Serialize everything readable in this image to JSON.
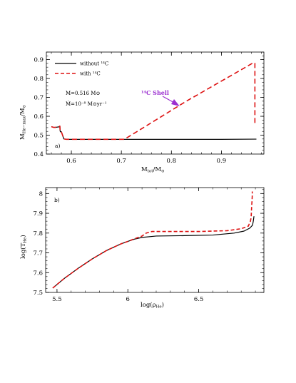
{
  "chart_data": [
    {
      "type": "line",
      "panel_label": "a)",
      "xlabel": "M_tot/M_⊙",
      "ylabel": "M_He-max/M_⊙",
      "xlim": [
        0.55,
        0.985
      ],
      "ylim": [
        0.4,
        0.94
      ],
      "xticks": [
        {
          "value": 0.6,
          "label": "0.6"
        },
        {
          "value": 0.7,
          "label": "0.7"
        },
        {
          "value": 0.8,
          "label": "0.8"
        },
        {
          "value": 0.9,
          "label": "0.9"
        }
      ],
      "yticks": [
        {
          "value": 0.4,
          "label": "0.4"
        },
        {
          "value": 0.5,
          "label": "0.5"
        },
        {
          "value": 0.6,
          "label": "0.6"
        },
        {
          "value": 0.7,
          "label": "0.7"
        },
        {
          "value": 0.8,
          "label": "0.8"
        },
        {
          "value": 0.9,
          "label": "0.9"
        }
      ],
      "legend": [
        {
          "label": "without ¹⁴C",
          "style": "solid",
          "color": "#000000"
        },
        {
          "label": "with ¹⁴C",
          "style": "dashed",
          "color": "#dd1111"
        }
      ],
      "annotations": {
        "mass": "M=0.516 M⊙",
        "rate": "Ṁ=10⁻⁸ M⊙yr⁻¹",
        "shell_label": "¹⁴C Shell"
      },
      "series": [
        {
          "name": "without ¹⁴C",
          "color": "#000000",
          "dash": "solid",
          "x": [
            0.56,
            0.565,
            0.57,
            0.575,
            0.577,
            0.5775,
            0.578,
            0.58,
            0.585,
            0.59,
            0.6,
            0.7,
            0.8,
            0.9,
            0.97
          ],
          "y": [
            0.545,
            0.541,
            0.542,
            0.544,
            0.548,
            0.523,
            0.518,
            0.518,
            0.48,
            0.478,
            0.478,
            0.478,
            0.478,
            0.478,
            0.479
          ]
        },
        {
          "name": "with ¹⁴C",
          "color": "#dd1111",
          "dash": "dashed",
          "x": [
            0.56,
            0.565,
            0.57,
            0.575,
            0.577,
            0.5775,
            0.578,
            0.58,
            0.585,
            0.59,
            0.65,
            0.706,
            0.83,
            0.965,
            0.967,
            0.967
          ],
          "y": [
            0.545,
            0.541,
            0.542,
            0.544,
            0.548,
            0.523,
            0.518,
            0.518,
            0.48,
            0.478,
            0.478,
            0.478,
            0.68,
            0.885,
            0.88,
            0.55
          ]
        }
      ]
    },
    {
      "type": "line",
      "panel_label": "b)",
      "xlabel": "log(ρ_He)",
      "ylabel": "log(T_He)",
      "xlim": [
        5.42,
        6.96
      ],
      "ylim": [
        7.5,
        8.03
      ],
      "xticks": [
        {
          "value": 5.5,
          "label": "5.5"
        },
        {
          "value": 6,
          "label": "6"
        },
        {
          "value": 6.5,
          "label": "6.5"
        }
      ],
      "yticks": [
        {
          "value": 7.5,
          "label": "7.5"
        },
        {
          "value": 7.6,
          "label": "7.6"
        },
        {
          "value": 7.7,
          "label": "7.7"
        },
        {
          "value": 7.8,
          "label": "7.8"
        },
        {
          "value": 7.9,
          "label": "7.9"
        },
        {
          "value": 8,
          "label": "8"
        }
      ],
      "series": [
        {
          "name": "without ¹⁴C",
          "color": "#000000",
          "dash": "solid",
          "x": [
            5.47,
            5.55,
            5.65,
            5.75,
            5.85,
            5.95,
            6.0,
            6.05,
            6.1,
            6.2,
            6.4,
            6.6,
            6.75,
            6.82,
            6.86,
            6.88,
            6.885,
            6.89
          ],
          "y": [
            7.522,
            7.57,
            7.622,
            7.67,
            7.712,
            7.745,
            7.758,
            7.77,
            7.778,
            7.785,
            7.787,
            7.79,
            7.8,
            7.81,
            7.825,
            7.84,
            7.86,
            7.885
          ]
        },
        {
          "name": "with ¹⁴C",
          "color": "#dd1111",
          "dash": "dashed",
          "x": [
            5.47,
            5.55,
            5.65,
            5.75,
            5.85,
            5.95,
            6.0,
            6.05,
            6.1,
            6.13,
            6.17,
            6.3,
            6.5,
            6.7,
            6.8,
            6.85,
            6.865,
            6.87,
            6.872,
            6.874,
            6.876,
            6.878,
            6.878
          ],
          "y": [
            7.522,
            7.57,
            7.622,
            7.67,
            7.712,
            7.745,
            7.758,
            7.772,
            7.785,
            7.8,
            7.808,
            7.808,
            7.808,
            7.812,
            7.822,
            7.835,
            7.86,
            7.88,
            7.91,
            7.94,
            7.96,
            7.99,
            8.01
          ]
        }
      ]
    }
  ]
}
